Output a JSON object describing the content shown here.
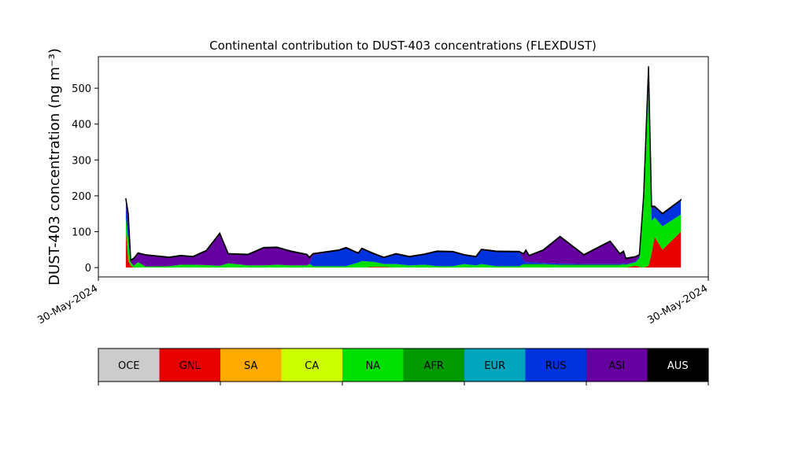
{
  "chart_data": {
    "type": "stacked_area",
    "title": "Continental contribution to DUST-403 concentrations (FLEXDUST)",
    "ylabel": "DUST-403 concentration (ng m⁻³)",
    "xlim": [
      0,
      100
    ],
    "xticks": [
      {
        "value": 0,
        "label": "30-May-2024"
      },
      {
        "value": 100,
        "label": "30-May-2024"
      }
    ],
    "ylim": [
      -26,
      588
    ],
    "yticks": [
      0,
      100,
      200,
      300,
      400,
      500
    ],
    "x": [
      4.5,
      4.9,
      5.3,
      5.8,
      6.5,
      7.7,
      11.6,
      13.5,
      15.5,
      17.7,
      19.9,
      21.3,
      24.5,
      27.1,
      29.3,
      31.6,
      34.2,
      34.6,
      35.2,
      39.4,
      40.6,
      42.6,
      43.2,
      45.2,
      46.8,
      48.8,
      51.0,
      53.5,
      55.5,
      58.1,
      60.0,
      61.9,
      62.8,
      65.2,
      69.0,
      69.7,
      70.1,
      70.6,
      72.9,
      75.7,
      79.6,
      83.9,
      85.5,
      86.1,
      86.5,
      88.1,
      88.7,
      89.4,
      90.2,
      90.7,
      91.2,
      92.5,
      95.5
    ],
    "series": [
      {
        "name": "OCE",
        "color": "#cccccc",
        "values": [
          0,
          0,
          0,
          0,
          0,
          0,
          0,
          0,
          0,
          0,
          0,
          0,
          0,
          0,
          0,
          0,
          0,
          0,
          0,
          0,
          0,
          0,
          0,
          0,
          0,
          0,
          0,
          0,
          0,
          0,
          0,
          0,
          0,
          0,
          0,
          0,
          0,
          0,
          0,
          0,
          0,
          0,
          0,
          0,
          0,
          0,
          0,
          0,
          0,
          0,
          0,
          0,
          0
        ]
      },
      {
        "name": "GNL",
        "color": "#e60000",
        "values": [
          100,
          20,
          5,
          0,
          0,
          0,
          0,
          0,
          0,
          0,
          0,
          0,
          0,
          0,
          0,
          0,
          0,
          0,
          0,
          0,
          0,
          0,
          0,
          2,
          2,
          0,
          0,
          0,
          0,
          0,
          0,
          0,
          0,
          0,
          0,
          0,
          0,
          0,
          0,
          0,
          0,
          0,
          0,
          0,
          0,
          5,
          2,
          0,
          5,
          40,
          85,
          50,
          100
        ]
      },
      {
        "name": "SA",
        "color": "#ffaa00",
        "values": [
          0,
          0,
          0,
          0,
          0,
          0,
          0,
          0,
          0,
          0,
          0,
          0,
          0,
          0,
          0,
          0,
          0,
          0,
          0,
          0,
          0,
          0,
          0,
          0,
          0,
          0,
          0,
          0,
          0,
          0,
          0,
          0,
          0,
          0,
          0,
          0,
          0,
          0,
          0,
          0,
          0,
          0,
          0,
          0,
          0,
          0,
          0,
          0,
          0,
          0,
          0,
          0,
          0
        ]
      },
      {
        "name": "CA",
        "color": "#ccff00",
        "values": [
          0,
          0,
          0,
          0,
          0,
          0,
          0,
          0,
          0,
          0,
          0,
          0,
          0,
          0,
          0,
          0,
          0,
          0,
          0,
          0,
          0,
          0,
          0,
          0,
          0,
          0,
          0,
          0,
          0,
          0,
          0,
          0,
          0,
          0,
          0,
          0,
          0,
          0,
          0,
          0,
          0,
          0,
          0,
          0,
          0,
          0,
          0,
          0,
          0,
          0,
          0,
          0,
          0
        ]
      },
      {
        "name": "NA",
        "color": "#00e000",
        "values": [
          40,
          60,
          10,
          5,
          15,
          3,
          4,
          8,
          8,
          7,
          5,
          12,
          6,
          6,
          8,
          6,
          6,
          10,
          4,
          4,
          4,
          14,
          18,
          14,
          8,
          10,
          6,
          8,
          4,
          4,
          10,
          6,
          10,
          4,
          4,
          8,
          8,
          8,
          8,
          6,
          6,
          6,
          6,
          8,
          8,
          10,
          25,
          180,
          500,
          90,
          55,
          65,
          48
        ]
      },
      {
        "name": "AFR",
        "color": "#009900",
        "values": [
          0,
          0,
          0,
          0,
          0,
          0,
          0,
          0,
          0,
          0,
          0,
          0,
          0,
          0,
          0,
          0,
          0,
          0,
          0,
          0,
          0,
          0,
          0,
          0,
          0,
          0,
          0,
          0,
          0,
          0,
          0,
          0,
          0,
          0,
          0,
          2,
          2,
          2,
          2,
          2,
          2,
          2,
          2,
          2,
          0,
          0,
          0,
          0,
          0,
          0,
          0,
          0,
          0
        ]
      },
      {
        "name": "EUR",
        "color": "#00a5bb",
        "values": [
          0,
          0,
          0,
          0,
          0,
          0,
          0,
          0,
          0,
          0,
          0,
          0,
          0,
          0,
          0,
          0,
          0,
          0,
          0,
          0,
          0,
          0,
          0,
          0,
          0,
          0,
          0,
          0,
          0,
          0,
          0,
          0,
          0,
          0,
          0,
          0,
          0,
          0,
          0,
          0,
          0,
          0,
          0,
          0,
          0,
          0,
          0,
          0,
          0,
          0,
          0,
          0,
          0
        ]
      },
      {
        "name": "RUS",
        "color": "#0033dd",
        "values": [
          40,
          30,
          0,
          0,
          0,
          0,
          0,
          0,
          0,
          0,
          0,
          0,
          0,
          0,
          0,
          0,
          0,
          0,
          30,
          44,
          51,
          26,
          35,
          22,
          18,
          28,
          24,
          29,
          41,
          40,
          25,
          24,
          40,
          41,
          40,
          10,
          5,
          5,
          3,
          3,
          2,
          2,
          2,
          2,
          2,
          2,
          3,
          10,
          25,
          30,
          30,
          35,
          40
        ]
      },
      {
        "name": "ASI",
        "color": "#6600a0",
        "values": [
          12,
          40,
          5,
          20,
          25,
          32,
          24,
          25,
          22,
          40,
          90,
          26,
          30,
          49,
          48,
          39,
          30,
          18,
          4,
          0,
          0,
          0,
          0,
          0,
          0,
          0,
          0,
          0,
          0,
          0,
          0,
          0,
          0,
          0,
          0,
          18,
          33,
          18,
          35,
          75,
          25,
          63,
          28,
          33,
          15,
          13,
          5,
          10,
          30,
          10,
          0,
          0,
          0
        ]
      },
      {
        "name": "AUS",
        "color": "#000000",
        "values": [
          1,
          1,
          1,
          1,
          1,
          1,
          1,
          1,
          1,
          1,
          1,
          1,
          1,
          1,
          1,
          1,
          1,
          1,
          1,
          1,
          1,
          1,
          1,
          1,
          1,
          1,
          1,
          1,
          1,
          1,
          1,
          1,
          1,
          1,
          1,
          1,
          1,
          1,
          1,
          1,
          1,
          1,
          1,
          1,
          1,
          1,
          1,
          1,
          1,
          1,
          1,
          1,
          1
        ]
      }
    ]
  }
}
